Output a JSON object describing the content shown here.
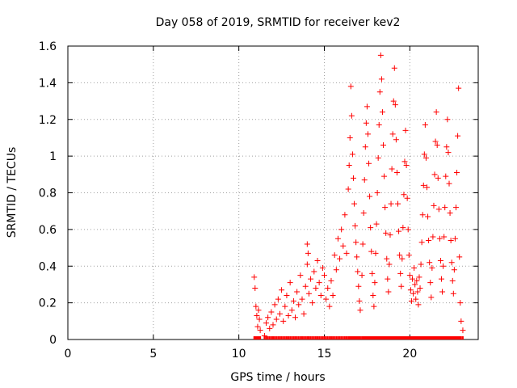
{
  "chart_data": {
    "type": "scatter",
    "title": "Day 058 of 2019, SRMTID for receiver kev2",
    "xlabel": "GPS time / hours",
    "ylabel": "SRMTID / TECUs",
    "xlim": [
      0,
      24
    ],
    "ylim": [
      0,
      1.6
    ],
    "x_ticks": [
      0,
      5,
      10,
      15,
      20
    ],
    "x_tick_labels": [
      "0",
      "5",
      "10",
      "15",
      "20"
    ],
    "y_ticks": [
      0,
      0.2,
      0.4,
      0.6,
      0.8,
      1.0,
      1.2,
      1.4,
      1.6
    ],
    "y_tick_labels": [
      "0",
      "0.2",
      "0.4",
      "0.6",
      "0.8",
      "1",
      "1.2",
      "1.4",
      "1.6"
    ],
    "grid": true,
    "marker": "+",
    "series": [
      {
        "name": "kev2",
        "color": "#ff0000",
        "points": [
          [
            10.9,
            0.34
          ],
          [
            10.95,
            0.28
          ],
          [
            11.0,
            0.18
          ],
          [
            11.05,
            0.13
          ],
          [
            11.1,
            0.07
          ],
          [
            11.15,
            0.16
          ],
          [
            11.2,
            0.11
          ],
          [
            11.25,
            0.05
          ],
          [
            11.5,
            0.02
          ],
          [
            11.6,
            0.09
          ],
          [
            11.7,
            0.12
          ],
          [
            11.8,
            0.06
          ],
          [
            11.9,
            0.15
          ],
          [
            12.0,
            0.08
          ],
          [
            12.1,
            0.19
          ],
          [
            12.2,
            0.11
          ],
          [
            12.3,
            0.22
          ],
          [
            12.4,
            0.14
          ],
          [
            12.5,
            0.27
          ],
          [
            12.6,
            0.1
          ],
          [
            12.7,
            0.18
          ],
          [
            12.8,
            0.24
          ],
          [
            12.9,
            0.13
          ],
          [
            13.0,
            0.31
          ],
          [
            13.1,
            0.16
          ],
          [
            13.2,
            0.21
          ],
          [
            13.3,
            0.12
          ],
          [
            13.4,
            0.26
          ],
          [
            13.5,
            0.19
          ],
          [
            13.6,
            0.35
          ],
          [
            13.7,
            0.22
          ],
          [
            13.8,
            0.14
          ],
          [
            13.9,
            0.29
          ],
          [
            14.0,
            0.41
          ],
          [
            14.0,
            0.52
          ],
          [
            14.05,
            0.47
          ],
          [
            14.1,
            0.25
          ],
          [
            14.2,
            0.33
          ],
          [
            14.3,
            0.2
          ],
          [
            14.4,
            0.37
          ],
          [
            14.5,
            0.28
          ],
          [
            14.6,
            0.43
          ],
          [
            14.7,
            0.31
          ],
          [
            14.8,
            0.24
          ],
          [
            14.9,
            0.39
          ],
          [
            15.0,
            0.35
          ],
          [
            15.1,
            0.22
          ],
          [
            15.2,
            0.28
          ],
          [
            15.3,
            0.18
          ],
          [
            15.4,
            0.32
          ],
          [
            15.5,
            0.24
          ],
          [
            15.6,
            0.46
          ],
          [
            15.7,
            0.38
          ],
          [
            15.8,
            0.55
          ],
          [
            15.9,
            0.44
          ],
          [
            16.0,
            0.6
          ],
          [
            16.1,
            0.51
          ],
          [
            16.2,
            0.68
          ],
          [
            16.3,
            0.47
          ],
          [
            16.4,
            0.82
          ],
          [
            16.45,
            0.95
          ],
          [
            16.5,
            1.1
          ],
          [
            16.55,
            1.38
          ],
          [
            16.6,
            1.22
          ],
          [
            16.65,
            1.01
          ],
          [
            16.7,
            0.88
          ],
          [
            16.75,
            0.74
          ],
          [
            16.8,
            0.62
          ],
          [
            16.85,
            0.53
          ],
          [
            16.9,
            0.45
          ],
          [
            16.95,
            0.37
          ],
          [
            17.0,
            0.29
          ],
          [
            17.05,
            0.21
          ],
          [
            17.1,
            0.16
          ],
          [
            17.2,
            0.35
          ],
          [
            17.25,
            0.52
          ],
          [
            17.3,
            0.69
          ],
          [
            17.35,
            0.87
          ],
          [
            17.4,
            1.05
          ],
          [
            17.45,
            1.18
          ],
          [
            17.5,
            1.27
          ],
          [
            17.55,
            1.12
          ],
          [
            17.6,
            0.96
          ],
          [
            17.65,
            0.78
          ],
          [
            17.7,
            0.61
          ],
          [
            17.75,
            0.48
          ],
          [
            17.8,
            0.36
          ],
          [
            17.85,
            0.24
          ],
          [
            17.9,
            0.18
          ],
          [
            17.95,
            0.31
          ],
          [
            18.0,
            0.47
          ],
          [
            18.05,
            0.63
          ],
          [
            18.1,
            0.8
          ],
          [
            18.15,
            0.99
          ],
          [
            18.2,
            1.17
          ],
          [
            18.25,
            1.35
          ],
          [
            18.3,
            1.55
          ],
          [
            18.35,
            1.42
          ],
          [
            18.4,
            1.24
          ],
          [
            18.45,
            1.06
          ],
          [
            18.5,
            0.89
          ],
          [
            18.55,
            0.72
          ],
          [
            18.6,
            0.58
          ],
          [
            18.65,
            0.44
          ],
          [
            18.7,
            0.33
          ],
          [
            18.75,
            0.26
          ],
          [
            18.8,
            0.41
          ],
          [
            18.85,
            0.57
          ],
          [
            18.9,
            0.74
          ],
          [
            18.95,
            0.93
          ],
          [
            19.0,
            1.12
          ],
          [
            19.05,
            1.3
          ],
          [
            19.1,
            1.48
          ],
          [
            19.15,
            1.28
          ],
          [
            19.2,
            1.09
          ],
          [
            19.25,
            0.91
          ],
          [
            19.3,
            0.74
          ],
          [
            19.35,
            0.59
          ],
          [
            19.4,
            0.46
          ],
          [
            19.45,
            0.36
          ],
          [
            19.5,
            0.29
          ],
          [
            19.55,
            0.44
          ],
          [
            19.6,
            0.61
          ],
          [
            19.65,
            0.79
          ],
          [
            19.7,
            0.97
          ],
          [
            19.75,
            1.14
          ],
          [
            19.8,
            0.95
          ],
          [
            19.85,
            0.77
          ],
          [
            19.9,
            0.6
          ],
          [
            19.95,
            0.46
          ],
          [
            20.0,
            0.35
          ],
          [
            20.05,
            0.27
          ],
          [
            20.1,
            0.21
          ],
          [
            20.15,
            0.33
          ],
          [
            20.2,
            0.25
          ],
          [
            20.25,
            0.39
          ],
          [
            20.3,
            0.3
          ],
          [
            20.35,
            0.22
          ],
          [
            20.4,
            0.32
          ],
          [
            20.45,
            0.26
          ],
          [
            20.5,
            0.19
          ],
          [
            20.55,
            0.34
          ],
          [
            20.6,
            0.28
          ],
          [
            20.65,
            0.41
          ],
          [
            20.7,
            0.53
          ],
          [
            20.75,
            0.68
          ],
          [
            20.8,
            0.84
          ],
          [
            20.85,
            1.01
          ],
          [
            20.9,
            1.17
          ],
          [
            20.95,
            0.99
          ],
          [
            21.0,
            0.83
          ],
          [
            21.05,
            0.67
          ],
          [
            21.1,
            0.54
          ],
          [
            21.15,
            0.42
          ],
          [
            21.2,
            0.31
          ],
          [
            21.25,
            0.23
          ],
          [
            21.3,
            0.39
          ],
          [
            21.35,
            0.56
          ],
          [
            21.4,
            0.73
          ],
          [
            21.45,
            0.9
          ],
          [
            21.5,
            1.08
          ],
          [
            21.55,
            1.24
          ],
          [
            21.6,
            1.06
          ],
          [
            21.65,
            0.88
          ],
          [
            21.7,
            0.71
          ],
          [
            21.75,
            0.55
          ],
          [
            21.8,
            0.43
          ],
          [
            21.85,
            0.33
          ],
          [
            21.9,
            0.26
          ],
          [
            21.95,
            0.4
          ],
          [
            22.0,
            0.56
          ],
          [
            22.05,
            0.72
          ],
          [
            22.1,
            0.89
          ],
          [
            22.15,
            1.05
          ],
          [
            22.2,
            1.2
          ],
          [
            22.25,
            1.02
          ],
          [
            22.3,
            0.85
          ],
          [
            22.35,
            0.69
          ],
          [
            22.4,
            0.54
          ],
          [
            22.45,
            0.42
          ],
          [
            22.5,
            0.32
          ],
          [
            22.55,
            0.25
          ],
          [
            22.6,
            0.38
          ],
          [
            22.65,
            0.55
          ],
          [
            22.7,
            0.72
          ],
          [
            22.75,
            0.91
          ],
          [
            22.8,
            1.11
          ],
          [
            22.85,
            1.37
          ],
          [
            22.9,
            0.45
          ],
          [
            22.95,
            0.2
          ],
          [
            23.0,
            0.1
          ],
          [
            23.1,
            0.05
          ]
        ]
      }
    ]
  }
}
